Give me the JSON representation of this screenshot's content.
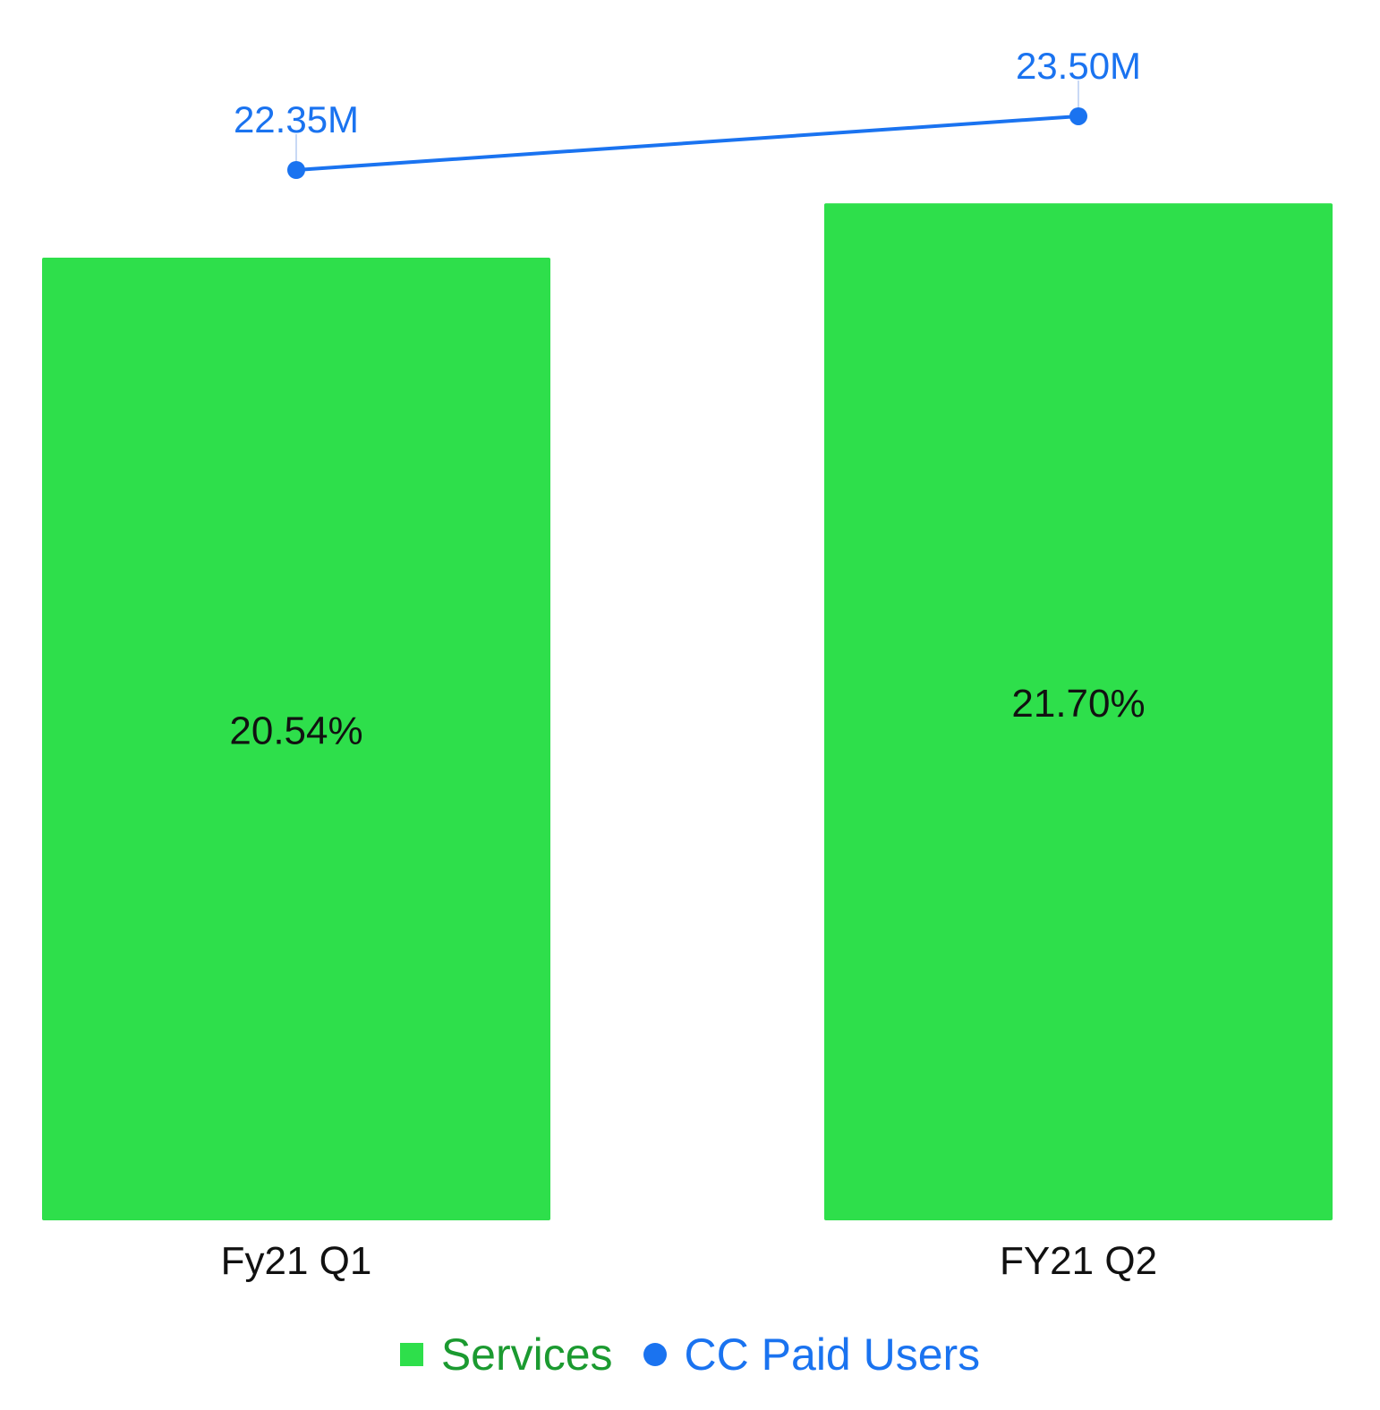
{
  "chart_data": {
    "type": "bar",
    "categories": [
      "Fy21 Q1",
      "FY21 Q2"
    ],
    "series": [
      {
        "name": "Services",
        "kind": "bar",
        "values": [
          20.54,
          21.7
        ],
        "value_labels": [
          "20.54%",
          "21.70%"
        ],
        "color": "#2edf4b",
        "legend_color": "#1b9a30"
      },
      {
        "name": "CC Paid Users",
        "kind": "line",
        "values": [
          22.35,
          23.5
        ],
        "value_labels": [
          "22.35M",
          "23.50M"
        ],
        "color": "#1a73f0"
      }
    ],
    "title": "",
    "xlabel": "",
    "ylabel": "",
    "legend_position": "bottom-center",
    "grid": false
  }
}
